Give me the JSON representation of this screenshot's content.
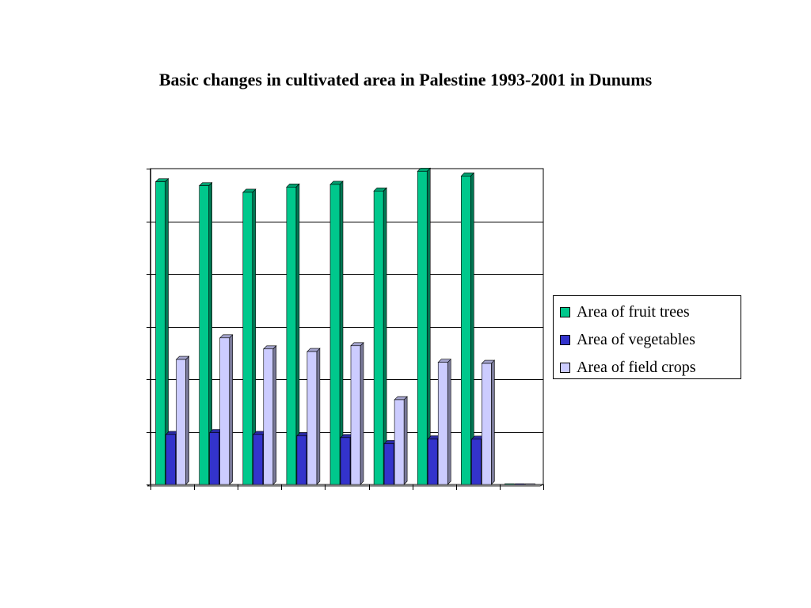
{
  "chart_data": {
    "type": "bar",
    "title": "Basic changes in cultivated area in Palestine 1993-2001 in Dunums",
    "categories": [
      "",
      "",
      "",
      "",
      "",
      "",
      "",
      "",
      ""
    ],
    "ylim": [
      0,
      1200000
    ],
    "grid": true,
    "legend_position": "right",
    "series": [
      {
        "name": "Area of fruit trees",
        "color": "#00c88c",
        "values": [
          1150000,
          1135000,
          1110000,
          1130000,
          1140000,
          1115000,
          1190000,
          1172000,
          0
        ]
      },
      {
        "name": "Area of vegetables",
        "color": "#3333cc",
        "values": [
          190000,
          197000,
          190000,
          185000,
          178000,
          155000,
          173000,
          172000,
          0
        ]
      },
      {
        "name": "Area of field crops",
        "color": "#ccccff",
        "values": [
          475000,
          557000,
          515000,
          505000,
          527000,
          322000,
          464000,
          460000,
          0
        ]
      }
    ]
  }
}
